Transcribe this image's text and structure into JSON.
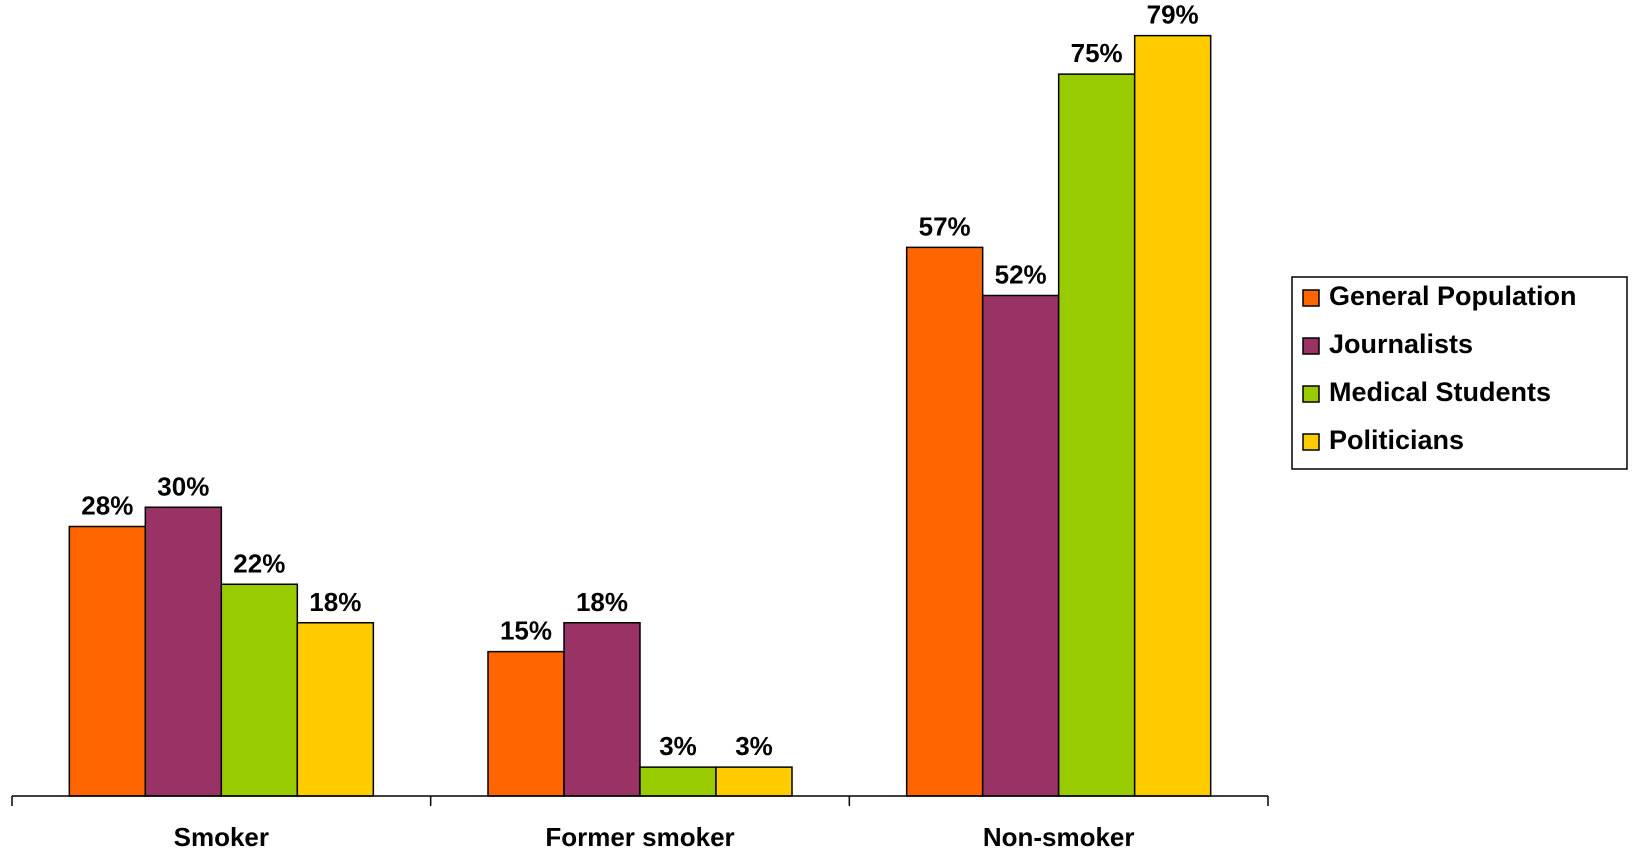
{
  "chart_data": {
    "type": "bar",
    "title": "",
    "xlabel": "",
    "ylabel": "",
    "ylim": [
      0,
      80
    ],
    "grid": false,
    "legend_position": "right",
    "value_suffix": "%",
    "categories": [
      "Smoker",
      "Former smoker",
      "Non-smoker"
    ],
    "series": [
      {
        "name": "General Population",
        "color": "#FF6600",
        "values": [
          28,
          15,
          57
        ],
        "labels": [
          "28%",
          "15%",
          "57%"
        ]
      },
      {
        "name": "Journalists",
        "color": "#993366",
        "values": [
          30,
          18,
          52
        ],
        "labels": [
          "30%",
          "18%",
          "52%"
        ]
      },
      {
        "name": "Medical Students",
        "color": "#99CC00",
        "values": [
          22,
          3,
          75
        ],
        "labels": [
          "22%",
          "3%",
          "75%"
        ]
      },
      {
        "name": "Politicians",
        "color": "#FFCC00",
        "values": [
          18,
          3,
          79
        ],
        "labels": [
          "18%",
          "3%",
          "79%"
        ]
      }
    ]
  }
}
